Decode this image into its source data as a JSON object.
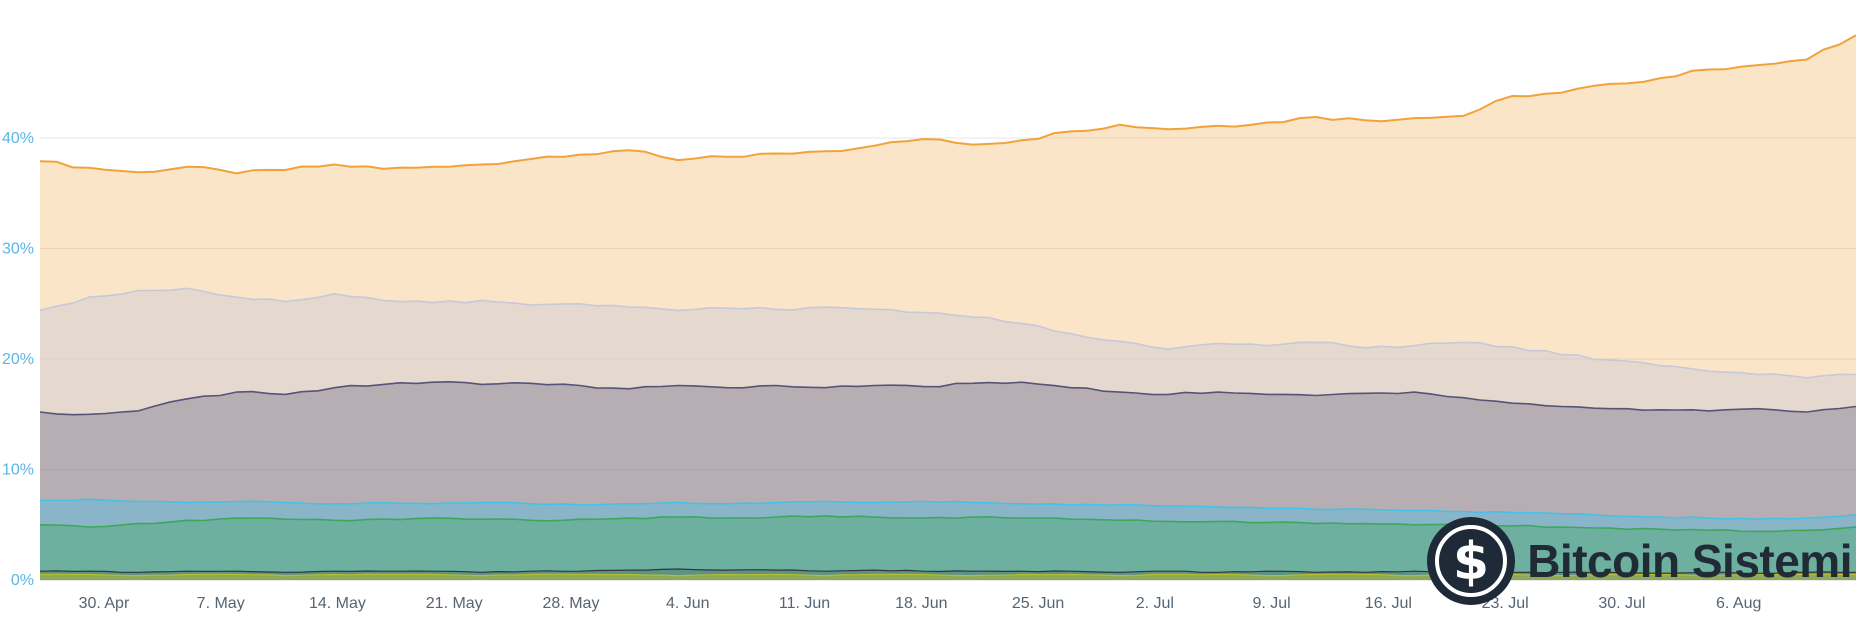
{
  "watermark": {
    "text": "Bitcoin Sistemi",
    "icon": "bitcoin-dollar-icon",
    "dollar_glyph": "$"
  },
  "colors": {
    "background": "#ffffff",
    "gridline": "#e7e7e7",
    "axis_line": "#d6d6d6",
    "y_label": "#59b7e8",
    "x_label": "#566573",
    "watermark_circle": "#1f2a38",
    "watermark_text": "#212b36"
  },
  "chart_data": {
    "type": "area",
    "title": "",
    "xlabel": "",
    "ylabel": "",
    "grid": true,
    "legend": "none",
    "ylim": [
      0,
      52.5
    ],
    "y_axis": {
      "ticks": [
        "0%",
        "10%",
        "20%",
        "30%",
        "40%"
      ],
      "values": [
        0,
        10,
        20,
        30,
        40
      ]
    },
    "x_axis": {
      "labels": [
        "30. Apr",
        "7. May",
        "14. May",
        "21. May",
        "28. May",
        "4. Jun",
        "11. Jun",
        "18. Jun",
        "25. Jun",
        "2. Jul",
        "9. Jul",
        "16. Jul",
        "23. Jul",
        "30. Jul",
        "6. Aug"
      ],
      "first_fraction": 0.0352,
      "step_fraction": 0.0643
    },
    "series": [
      {
        "name": "orange-dominance-area",
        "color": "#f2a23a",
        "fill_opacity": 0.28,
        "stroke_width": 2,
        "noise": 0.18,
        "values": [
          37.9,
          37.3,
          36.9,
          37.4,
          36.8,
          37.1,
          37.6,
          37.2,
          37.4,
          37.6,
          38.1,
          38.5,
          38.9,
          38.0,
          38.3,
          38.6,
          38.8,
          39.3,
          39.9,
          39.4,
          39.8,
          40.6,
          41.2,
          40.8,
          41.1,
          41.4,
          41.9,
          41.6,
          41.8,
          42.0,
          43.8,
          44.1,
          44.9,
          45.4,
          46.2,
          46.6,
          47.1,
          49.3
        ]
      },
      {
        "name": "lavender-dominance-area",
        "color": "#c6c9d8",
        "fill_opacity": 0.42,
        "stroke_width": 1.6,
        "noise": 0.15,
        "values": [
          24.4,
          25.6,
          26.2,
          26.4,
          25.6,
          25.2,
          25.9,
          25.3,
          25.1,
          25.3,
          24.9,
          25.0,
          24.7,
          24.4,
          24.6,
          24.5,
          24.7,
          24.5,
          24.2,
          23.8,
          23.2,
          22.3,
          21.6,
          20.9,
          21.4,
          21.2,
          21.5,
          21.0,
          21.2,
          21.5,
          21.1,
          20.4,
          19.9,
          19.4,
          18.9,
          18.6,
          18.3,
          18.6
        ]
      },
      {
        "name": "navy-dominance-area",
        "color": "#565379",
        "fill_opacity": 0.32,
        "stroke_width": 1.6,
        "noise": 0.12,
        "values": [
          15.2,
          15.0,
          15.3,
          16.4,
          17.0,
          16.8,
          17.4,
          17.7,
          17.9,
          17.7,
          17.8,
          17.6,
          17.3,
          17.6,
          17.4,
          17.6,
          17.4,
          17.6,
          17.5,
          17.8,
          17.9,
          17.4,
          17.0,
          16.8,
          17.0,
          16.8,
          16.7,
          16.9,
          17.0,
          16.5,
          16.0,
          15.7,
          15.5,
          15.4,
          15.3,
          15.5,
          15.2,
          15.7
        ]
      },
      {
        "name": "lightblue-dominance-area",
        "color": "#45c1e8",
        "fill_opacity": 0.4,
        "stroke_width": 1.6,
        "noise": 0.06,
        "values": [
          7.2,
          7.3,
          7.1,
          7.0,
          7.1,
          7.0,
          6.9,
          7.0,
          6.9,
          7.0,
          6.9,
          6.8,
          6.9,
          7.0,
          6.9,
          7.0,
          7.1,
          7.0,
          7.1,
          7.0,
          6.9,
          6.8,
          6.8,
          6.7,
          6.6,
          6.5,
          6.4,
          6.4,
          6.3,
          6.2,
          6.1,
          6.0,
          5.8,
          5.7,
          5.6,
          5.5,
          5.6,
          5.9
        ]
      },
      {
        "name": "green-dominance-area",
        "color": "#3fa75c",
        "fill_opacity": 0.38,
        "stroke_width": 1.6,
        "noise": 0.08,
        "values": [
          5.0,
          4.8,
          5.1,
          5.4,
          5.6,
          5.5,
          5.4,
          5.5,
          5.6,
          5.5,
          5.4,
          5.5,
          5.6,
          5.7,
          5.6,
          5.7,
          5.8,
          5.7,
          5.6,
          5.7,
          5.6,
          5.5,
          5.4,
          5.3,
          5.3,
          5.2,
          5.1,
          5.1,
          5.0,
          5.0,
          4.9,
          4.8,
          4.7,
          4.6,
          4.5,
          4.4,
          4.5,
          4.8
        ]
      },
      {
        "name": "dark-dominance-area",
        "color": "#2f3640",
        "fill_opacity": 0.25,
        "stroke_width": 1.2,
        "noise": 0.04,
        "values": [
          0.8,
          0.8,
          0.7,
          0.8,
          0.8,
          0.7,
          0.8,
          0.8,
          0.8,
          0.7,
          0.8,
          0.8,
          0.9,
          1.0,
          0.9,
          0.9,
          0.8,
          0.9,
          0.8,
          0.8,
          0.8,
          0.8,
          0.7,
          0.8,
          0.7,
          0.8,
          0.7,
          0.7,
          0.8,
          0.7,
          0.7,
          0.7,
          0.7,
          0.6,
          0.7,
          0.6,
          0.7,
          0.7
        ]
      },
      {
        "name": "olive-dominance-area",
        "color": "#b5bd31",
        "fill_opacity": 0.55,
        "stroke_width": 1.2,
        "noise": 0.03,
        "values": [
          0.5,
          0.5,
          0.4,
          0.5,
          0.5,
          0.4,
          0.5,
          0.5,
          0.5,
          0.4,
          0.5,
          0.5,
          0.5,
          0.4,
          0.5,
          0.5,
          0.4,
          0.5,
          0.5,
          0.4,
          0.5,
          0.5,
          0.4,
          0.5,
          0.5,
          0.4,
          0.5,
          0.5,
          0.4,
          0.5,
          0.5,
          0.4,
          0.5,
          0.5,
          0.4,
          0.5,
          0.5,
          0.5
        ]
      }
    ]
  }
}
